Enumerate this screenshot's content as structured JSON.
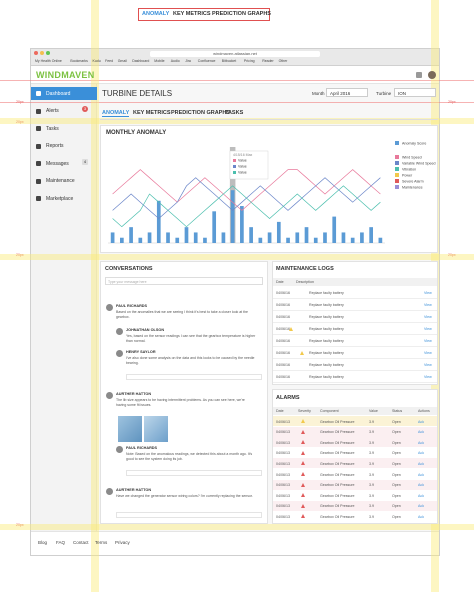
{
  "annotations": {
    "tabs": [
      "ANOMALY",
      "KEY METRICS",
      "PREDICTION GRAPHS"
    ],
    "spacing": [
      "20px",
      "20px",
      "20px",
      "20px",
      "20px",
      "20px"
    ]
  },
  "browser": {
    "url": "windmaven.atlassian.net",
    "bookmarks": [
      "My Health Online",
      "Bookmarks",
      "Kudu",
      "Feed",
      "Gmail",
      "Dashboard",
      "Mobile",
      "Audio",
      "Jira",
      "Confluence",
      "Bitbucket",
      "Pricing",
      "Reader",
      "Other"
    ]
  },
  "header": {
    "logo": "WINDMAVEN"
  },
  "sidebar": {
    "items": [
      "Dashboard",
      "Alerts",
      "Tasks",
      "Reports",
      "Messages",
      "Maintenance",
      "Marketplace"
    ],
    "alerts_badge": "3",
    "messages_badge": "4"
  },
  "page": {
    "title": "TURBINE DETAILS",
    "month_label": "Month",
    "month_value": "April 2016",
    "turbine_label": "Turbine",
    "turbine_value": "ION",
    "tabs": [
      "ANOMALY",
      "KEY METRICS",
      "PREDICTION GRAPHS",
      "TASKS"
    ]
  },
  "chart": {
    "title": "MONTHLY ANOMALY",
    "tooltip": {
      "title": "4/15/16 Max",
      "rows": [
        "Value",
        "Value",
        "Value"
      ]
    },
    "legend": [
      {
        "name": "Anomaly Score",
        "color": "#5b9bd5"
      },
      {
        "name": "Wind Speed",
        "color": "#e8799b"
      },
      {
        "name": "Variable Wind Speed",
        "color": "#6b86c9"
      },
      {
        "name": "Vibration",
        "color": "#4cbfae"
      },
      {
        "name": "Power",
        "color": "#f2c94c"
      },
      {
        "name": "Severe Alarm",
        "color": "#e05a5a"
      },
      {
        "name": "Maintenance",
        "color": "#9b8fd6"
      }
    ],
    "bars": [
      2,
      1,
      3,
      1,
      2,
      8,
      2,
      1,
      3,
      2,
      1,
      6,
      2,
      10,
      7,
      3,
      1,
      2,
      4,
      1,
      2,
      3,
      1,
      2,
      5,
      2,
      1,
      2,
      3,
      1
    ],
    "series": [
      {
        "name": "Wind Speed",
        "color": "#e8799b",
        "values": [
          6,
          7,
          8,
          9,
          8,
          7,
          6,
          5,
          6,
          7,
          8,
          7,
          6,
          5,
          4,
          5,
          6,
          7,
          8,
          9,
          9,
          8,
          7,
          6,
          7,
          8,
          9,
          8,
          7,
          6
        ]
      },
      {
        "name": "Variable Wind Speed",
        "color": "#6b86c9",
        "values": [
          4,
          5,
          6,
          5,
          4,
          3,
          4,
          5,
          7,
          8,
          7,
          6,
          5,
          4,
          5,
          6,
          7,
          6,
          5,
          4,
          5,
          6,
          7,
          8,
          7,
          6,
          5,
          6,
          7,
          8
        ]
      },
      {
        "name": "Vibration",
        "color": "#4cbfae",
        "values": [
          3,
          2,
          3,
          4,
          6,
          5,
          4,
          3,
          2,
          3,
          4,
          5,
          6,
          7,
          6,
          5,
          4,
          3,
          4,
          5,
          6,
          5,
          4,
          5,
          6,
          7,
          6,
          5,
          4,
          5
        ]
      }
    ]
  },
  "conversations": {
    "title": "CONVERSATIONS",
    "input_placeholder": "Type your message here",
    "messages": [
      {
        "name": "PAUL RICHARDS",
        "text": "Based on the anomalies that we are seeing I think it's best to take a closer look at the gearbox."
      },
      {
        "name": "JOHNATHAN OLSON",
        "text": "Yes, based on the sensor readings I can see that the gearbox temperature is higher than normal."
      },
      {
        "name": "HENRY SAYLOR",
        "text": "I've also done some analysis on the data and this looks to be caused by the needle bearing."
      },
      {
        "name": "AURTHER HATTON",
        "text": "The lib size appears to be having intermittent problems. As you can see here, we're having some fit issues."
      },
      {
        "name": "PAUL RICHARDS",
        "text": "Note: Based on the anomalous readings, we detected this about a month ago. It's good to see the system doing its job."
      },
      {
        "name": "AURTHER HATTON",
        "text": "Have we changed the generator sensor wiring colors? I'm currently replacing the sensor."
      }
    ]
  },
  "maintenance": {
    "title": "MAINTENANCE LOGS",
    "columns": [
      "Date",
      "Description"
    ],
    "action": "View",
    "rows": [
      [
        "04/06/16",
        "Replace faulty battery"
      ],
      [
        "04/06/16",
        "Replace faulty battery"
      ],
      [
        "04/06/16",
        "Replace faulty battery"
      ],
      [
        "04/06/16",
        "Replace faulty battery"
      ],
      [
        "04/06/16",
        "Replace faulty battery"
      ],
      [
        "04/06/16",
        "Replace faulty battery"
      ],
      [
        "04/06/16",
        "Replace faulty battery"
      ],
      [
        "04/06/16",
        "Replace faulty battery"
      ]
    ]
  },
  "alarms": {
    "title": "ALARMS",
    "columns": [
      "Date",
      "Severity",
      "Component",
      "Value",
      "Status",
      "Actions"
    ],
    "rows": [
      [
        "04/06/13",
        "Gearbox Oil Pressure",
        "3.9",
        "Open",
        "Ack"
      ],
      [
        "04/06/13",
        "Gearbox Oil Pressure",
        "3.9",
        "Open",
        "Ack"
      ],
      [
        "04/06/13",
        "Gearbox Oil Pressure",
        "3.9",
        "Open",
        "Ack"
      ],
      [
        "04/06/13",
        "Gearbox Oil Pressure",
        "3.9",
        "Open",
        "Ack"
      ],
      [
        "04/06/13",
        "Gearbox Oil Pressure",
        "3.9",
        "Open",
        "Ack"
      ],
      [
        "04/06/13",
        "Gearbox Oil Pressure",
        "3.9",
        "Open",
        "Ack"
      ],
      [
        "04/06/13",
        "Gearbox Oil Pressure",
        "3.9",
        "Open",
        "Ack"
      ],
      [
        "04/06/13",
        "Gearbox Oil Pressure",
        "3.9",
        "Open",
        "Ack"
      ],
      [
        "04/06/13",
        "Gearbox Oil Pressure",
        "3.9",
        "Open",
        "Ack"
      ],
      [
        "04/06/13",
        "Gearbox Oil Pressure",
        "3.9",
        "Open",
        "Ack"
      ]
    ]
  },
  "footer": {
    "links": [
      "Blog",
      "FAQ",
      "Contact",
      "Terms",
      "Privacy"
    ]
  }
}
